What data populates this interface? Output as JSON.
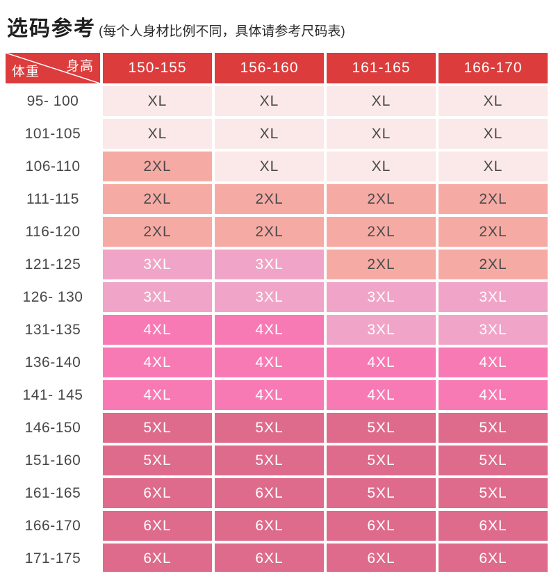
{
  "title": {
    "main": "选码参考",
    "note": "(每个人身材比例不同，具体请参考尺码表)"
  },
  "table": {
    "corner": {
      "top_right": "身高",
      "bottom_left": "体重"
    },
    "height_columns": [
      "150-155",
      "156-160",
      "161-165",
      "166-170"
    ],
    "rows": [
      {
        "weight": "95- 100",
        "sizes": [
          "XL",
          "XL",
          "XL",
          "XL"
        ]
      },
      {
        "weight": "101-105",
        "sizes": [
          "XL",
          "XL",
          "XL",
          "XL"
        ]
      },
      {
        "weight": "106-110",
        "sizes": [
          "2XL",
          "XL",
          "XL",
          "XL"
        ]
      },
      {
        "weight": "111-115",
        "sizes": [
          "2XL",
          "2XL",
          "2XL",
          "2XL"
        ]
      },
      {
        "weight": "116-120",
        "sizes": [
          "2XL",
          "2XL",
          "2XL",
          "2XL"
        ]
      },
      {
        "weight": "121-125",
        "sizes": [
          "3XL",
          "3XL",
          "2XL",
          "2XL"
        ]
      },
      {
        "weight": "126- 130",
        "sizes": [
          "3XL",
          "3XL",
          "3XL",
          "3XL"
        ]
      },
      {
        "weight": "131-135",
        "sizes": [
          "4XL",
          "4XL",
          "3XL",
          "3XL"
        ]
      },
      {
        "weight": "136-140",
        "sizes": [
          "4XL",
          "4XL",
          "4XL",
          "4XL"
        ]
      },
      {
        "weight": "141- 145",
        "sizes": [
          "4XL",
          "4XL",
          "4XL",
          "4XL"
        ]
      },
      {
        "weight": "146-150",
        "sizes": [
          "5XL",
          "5XL",
          "5XL",
          "5XL"
        ]
      },
      {
        "weight": "151-160",
        "sizes": [
          "5XL",
          "5XL",
          "5XL",
          "5XL"
        ]
      },
      {
        "weight": "161-165",
        "sizes": [
          "6XL",
          "6XL",
          "5XL",
          "5XL"
        ]
      },
      {
        "weight": "166-170",
        "sizes": [
          "6XL",
          "6XL",
          "6XL",
          "6XL"
        ]
      },
      {
        "weight": "171-175",
        "sizes": [
          "6XL",
          "6XL",
          "6XL",
          "6XL"
        ]
      }
    ]
  },
  "colors": {
    "header_bg": "#DC3C3C",
    "header_text": "#FFFFFF",
    "label_text": "#474747",
    "diagonal_line": "#FFFFFF",
    "size_fills": {
      "XL": "#FBE8E8",
      "2XL": "#F5ABA4",
      "3XL": "#F0A5C8",
      "4XL": "#F87AB5",
      "5XL": "#DE6B8B",
      "6XL": "#DE6B8B"
    },
    "size_text": {
      "XL": "#4A4A4A",
      "2XL": "#4A4A4A",
      "3XL": "#FFFFFF",
      "4XL": "#FFFFFF",
      "5XL": "#FFFFFF",
      "6XL": "#FFFFFF"
    }
  },
  "chart_data": {
    "type": "table",
    "title": "选码参考",
    "subtitle": "(每个人身材比例不同，具体请参考尺码表)",
    "corner_axis_labels": {
      "columns": "身高",
      "rows": "体重"
    },
    "columns": [
      "体重/身高",
      "150-155",
      "156-160",
      "161-165",
      "166-170"
    ],
    "rows": [
      [
        "95- 100",
        "XL",
        "XL",
        "XL",
        "XL"
      ],
      [
        "101-105",
        "XL",
        "XL",
        "XL",
        "XL"
      ],
      [
        "106-110",
        "2XL",
        "XL",
        "XL",
        "XL"
      ],
      [
        "111-115",
        "2XL",
        "2XL",
        "2XL",
        "2XL"
      ],
      [
        "116-120",
        "2XL",
        "2XL",
        "2XL",
        "2XL"
      ],
      [
        "121-125",
        "3XL",
        "3XL",
        "2XL",
        "2XL"
      ],
      [
        "126- 130",
        "3XL",
        "3XL",
        "3XL",
        "3XL"
      ],
      [
        "131-135",
        "4XL",
        "4XL",
        "3XL",
        "3XL"
      ],
      [
        "136-140",
        "4XL",
        "4XL",
        "4XL",
        "4XL"
      ],
      [
        "141- 145",
        "4XL",
        "4XL",
        "4XL",
        "4XL"
      ],
      [
        "146-150",
        "5XL",
        "5XL",
        "5XL",
        "5XL"
      ],
      [
        "151-160",
        "5XL",
        "5XL",
        "5XL",
        "5XL"
      ],
      [
        "161-165",
        "6XL",
        "6XL",
        "5XL",
        "5XL"
      ],
      [
        "166-170",
        "6XL",
        "6XL",
        "6XL",
        "6XL"
      ],
      [
        "171-175",
        "6XL",
        "6XL",
        "6XL",
        "6XL"
      ]
    ]
  }
}
